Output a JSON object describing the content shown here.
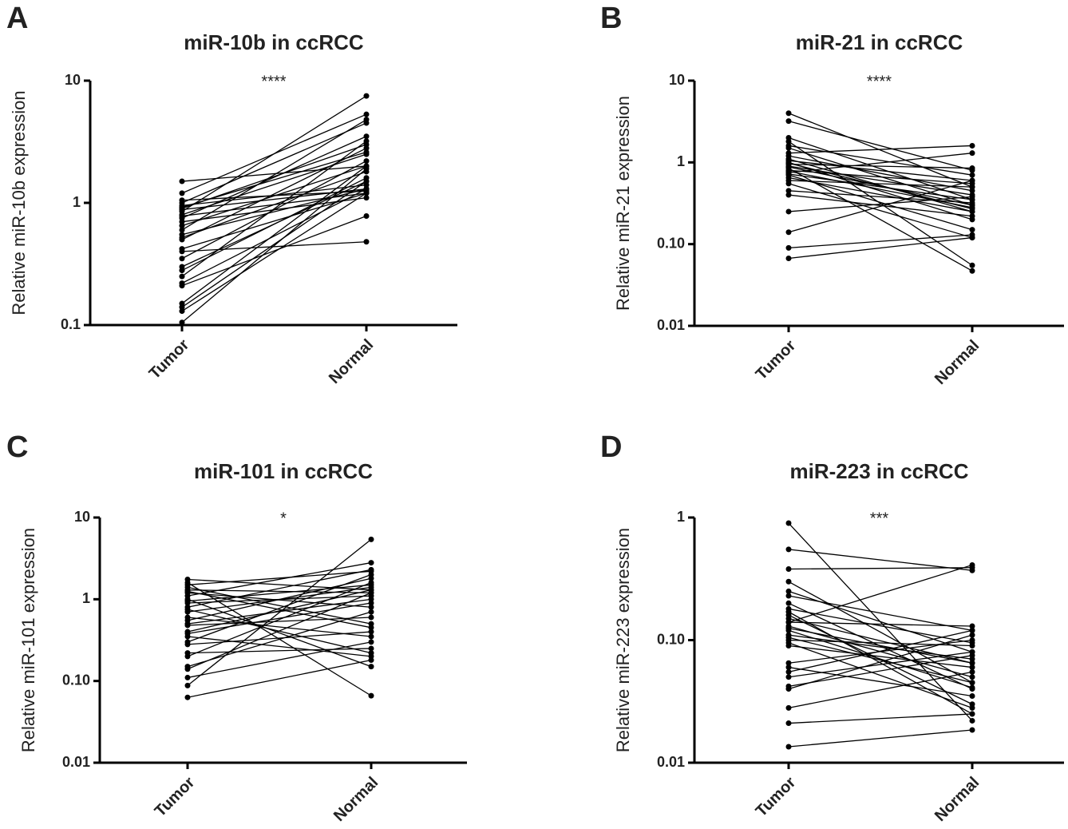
{
  "chart_data": [
    {
      "type": "paired-line",
      "panel": "A",
      "title": "miR-10b in ccRCC",
      "ylabel": "Relative miR-10b expression",
      "annotation": "****",
      "categories": [
        "Tumor",
        "Normal"
      ],
      "log_scale": true,
      "color": "#000000",
      "ylim": [
        0.1,
        10
      ],
      "yticks": [
        0.1,
        1,
        10
      ],
      "series": [
        {
          "values": [
            1.5,
            2.0
          ]
        },
        {
          "values": [
            1.2,
            5.3
          ]
        },
        {
          "values": [
            1.0,
            4.5
          ]
        },
        {
          "values": [
            0.95,
            1.4
          ]
        },
        {
          "values": [
            0.9,
            3.0
          ]
        },
        {
          "values": [
            0.88,
            1.3
          ]
        },
        {
          "values": [
            0.85,
            7.5
          ]
        },
        {
          "values": [
            0.8,
            2.5
          ]
        },
        {
          "values": [
            0.78,
            1.2
          ]
        },
        {
          "values": [
            0.75,
            3.5
          ]
        },
        {
          "values": [
            0.7,
            1.1
          ]
        },
        {
          "values": [
            0.65,
            2.0
          ]
        },
        {
          "values": [
            0.6,
            4.8
          ]
        },
        {
          "values": [
            0.55,
            1.3
          ]
        },
        {
          "values": [
            0.52,
            1.8
          ]
        },
        {
          "values": [
            0.5,
            2.8
          ]
        },
        {
          "values": [
            0.42,
            1.2
          ]
        },
        {
          "values": [
            0.4,
            0.48
          ]
        },
        {
          "values": [
            0.35,
            2.2
          ]
        },
        {
          "values": [
            0.3,
            1.5
          ]
        },
        {
          "values": [
            0.28,
            1.6
          ]
        },
        {
          "values": [
            0.25,
            3.2
          ]
        },
        {
          "values": [
            0.22,
            1.3
          ]
        },
        {
          "values": [
            0.21,
            0.78
          ]
        },
        {
          "values": [
            0.15,
            2.0
          ]
        },
        {
          "values": [
            0.14,
            1.5
          ]
        },
        {
          "values": [
            0.13,
            1.2
          ]
        },
        {
          "values": [
            0.105,
            1.9
          ]
        },
        {
          "values": [
            1.05,
            1.25
          ]
        },
        {
          "values": [
            0.92,
            2.6
          ]
        }
      ]
    },
    {
      "type": "paired-line",
      "panel": "B",
      "title": "miR-21 in ccRCC",
      "ylabel": "Relative miR-21 expression",
      "annotation": "****",
      "categories": [
        "Tumor",
        "Normal"
      ],
      "log_scale": true,
      "color": "#000000",
      "ylim": [
        0.01,
        10
      ],
      "yticks": [
        0.01,
        {
          "value": 0.1,
          "label": "0.10"
        },
        1,
        10
      ],
      "series": [
        {
          "values": [
            4.0,
            0.5
          ]
        },
        {
          "values": [
            3.2,
            0.8
          ]
        },
        {
          "values": [
            2.0,
            0.35
          ]
        },
        {
          "values": [
            1.8,
            0.055
          ]
        },
        {
          "values": [
            1.5,
            0.3
          ]
        },
        {
          "values": [
            1.3,
            1.6
          ]
        },
        {
          "values": [
            1.2,
            0.45
          ]
        },
        {
          "values": [
            1.1,
            0.25
          ]
        },
        {
          "values": [
            1.05,
            0.6
          ]
        },
        {
          "values": [
            1.0,
            0.2
          ]
        },
        {
          "values": [
            0.95,
            0.85
          ]
        },
        {
          "values": [
            0.9,
            0.4
          ]
        },
        {
          "values": [
            0.88,
            0.3
          ]
        },
        {
          "values": [
            0.85,
            0.047
          ]
        },
        {
          "values": [
            0.8,
            0.55
          ]
        },
        {
          "values": [
            0.78,
            0.28
          ]
        },
        {
          "values": [
            0.75,
            1.3
          ]
        },
        {
          "values": [
            0.72,
            0.35
          ]
        },
        {
          "values": [
            0.7,
            0.15
          ]
        },
        {
          "values": [
            0.65,
            0.25
          ]
        },
        {
          "values": [
            0.6,
            0.5
          ]
        },
        {
          "values": [
            0.55,
            0.12
          ]
        },
        {
          "values": [
            0.45,
            0.32
          ]
        },
        {
          "values": [
            0.4,
            0.22
          ]
        },
        {
          "values": [
            0.25,
            0.38
          ]
        },
        {
          "values": [
            0.14,
            0.6
          ]
        },
        {
          "values": [
            0.09,
            0.13
          ]
        },
        {
          "values": [
            0.067,
            0.12
          ]
        },
        {
          "values": [
            1.6,
            0.7
          ]
        },
        {
          "values": [
            0.98,
            0.27
          ]
        }
      ]
    },
    {
      "type": "paired-line",
      "panel": "C",
      "title": "miR-101 in ccRCC",
      "ylabel": "Relative miR-101 expression",
      "annotation": "*",
      "categories": [
        "Tumor",
        "Normal"
      ],
      "log_scale": true,
      "color": "#000000",
      "ylim": [
        0.01,
        10
      ],
      "yticks": [
        0.01,
        {
          "value": 0.1,
          "label": "0.10"
        },
        1,
        10
      ],
      "series": [
        {
          "values": [
            1.75,
            1.3
          ]
        },
        {
          "values": [
            1.6,
            0.066
          ]
        },
        {
          "values": [
            1.5,
            2.2
          ]
        },
        {
          "values": [
            1.4,
            0.5
          ]
        },
        {
          "values": [
            1.3,
            1.2
          ]
        },
        {
          "values": [
            1.2,
            0.8
          ]
        },
        {
          "values": [
            1.1,
            2.8
          ]
        },
        {
          "values": [
            1.0,
            0.15
          ]
        },
        {
          "values": [
            0.95,
            1.5
          ]
        },
        {
          "values": [
            0.9,
            1.1
          ]
        },
        {
          "values": [
            0.8,
            2.3
          ]
        },
        {
          "values": [
            0.75,
            0.22
          ]
        },
        {
          "values": [
            0.7,
            1.4
          ]
        },
        {
          "values": [
            0.6,
            0.35
          ]
        },
        {
          "values": [
            0.5,
            1.0
          ]
        },
        {
          "values": [
            0.48,
            0.6
          ]
        },
        {
          "values": [
            0.4,
            1.3
          ]
        },
        {
          "values": [
            0.38,
            0.9
          ]
        },
        {
          "values": [
            0.35,
            0.2
          ]
        },
        {
          "values": [
            0.3,
            2.0
          ]
        },
        {
          "values": [
            0.28,
            0.4
          ]
        },
        {
          "values": [
            0.22,
            0.25
          ]
        },
        {
          "values": [
            0.2,
            1.6
          ]
        },
        {
          "values": [
            0.15,
            0.7
          ]
        },
        {
          "values": [
            0.14,
            1.2
          ]
        },
        {
          "values": [
            0.11,
            0.3
          ]
        },
        {
          "values": [
            0.088,
            5.4
          ]
        },
        {
          "values": [
            0.063,
            0.18
          ]
        },
        {
          "values": [
            1.25,
            0.45
          ]
        },
        {
          "values": [
            0.55,
            1.8
          ]
        }
      ]
    },
    {
      "type": "paired-line",
      "panel": "D",
      "title": "miR-223 in ccRCC",
      "ylabel": "Relative miR-223 expression",
      "annotation": "***",
      "categories": [
        "Tumor",
        "Normal"
      ],
      "log_scale": true,
      "color": "#000000",
      "ylim": [
        0.01,
        1
      ],
      "yticks": [
        0.01,
        {
          "value": 0.1,
          "label": "0.10"
        },
        1
      ],
      "series": [
        {
          "values": [
            0.9,
            0.022
          ]
        },
        {
          "values": [
            0.55,
            0.37
          ]
        },
        {
          "values": [
            0.38,
            0.39
          ]
        },
        {
          "values": [
            0.3,
            0.045
          ]
        },
        {
          "values": [
            0.25,
            0.08
          ]
        },
        {
          "values": [
            0.23,
            0.12
          ]
        },
        {
          "values": [
            0.2,
            0.04
          ]
        },
        {
          "values": [
            0.18,
            0.095
          ]
        },
        {
          "values": [
            0.16,
            0.03
          ]
        },
        {
          "values": [
            0.15,
            0.065
          ]
        },
        {
          "values": [
            0.14,
            0.13
          ]
        },
        {
          "values": [
            0.13,
            0.05
          ]
        },
        {
          "values": [
            0.12,
            0.041
          ]
        },
        {
          "values": [
            0.11,
            0.07
          ]
        },
        {
          "values": [
            0.1,
            0.09
          ]
        },
        {
          "values": [
            0.095,
            0.028
          ]
        },
        {
          "values": [
            0.09,
            0.06
          ]
        },
        {
          "values": [
            0.065,
            0.1
          ]
        },
        {
          "values": [
            0.06,
            0.035
          ]
        },
        {
          "values": [
            0.055,
            0.12
          ]
        },
        {
          "values": [
            0.042,
            0.075
          ]
        },
        {
          "values": [
            0.04,
            0.11
          ]
        },
        {
          "values": [
            0.028,
            0.055
          ]
        },
        {
          "values": [
            0.021,
            0.025
          ]
        },
        {
          "values": [
            0.0135,
            0.0185
          ]
        },
        {
          "values": [
            0.125,
            0.065
          ]
        },
        {
          "values": [
            0.105,
            0.045
          ]
        },
        {
          "values": [
            0.14,
            0.41
          ]
        },
        {
          "values": [
            0.05,
            0.08
          ]
        },
        {
          "values": [
            0.17,
            0.025
          ]
        }
      ]
    }
  ]
}
